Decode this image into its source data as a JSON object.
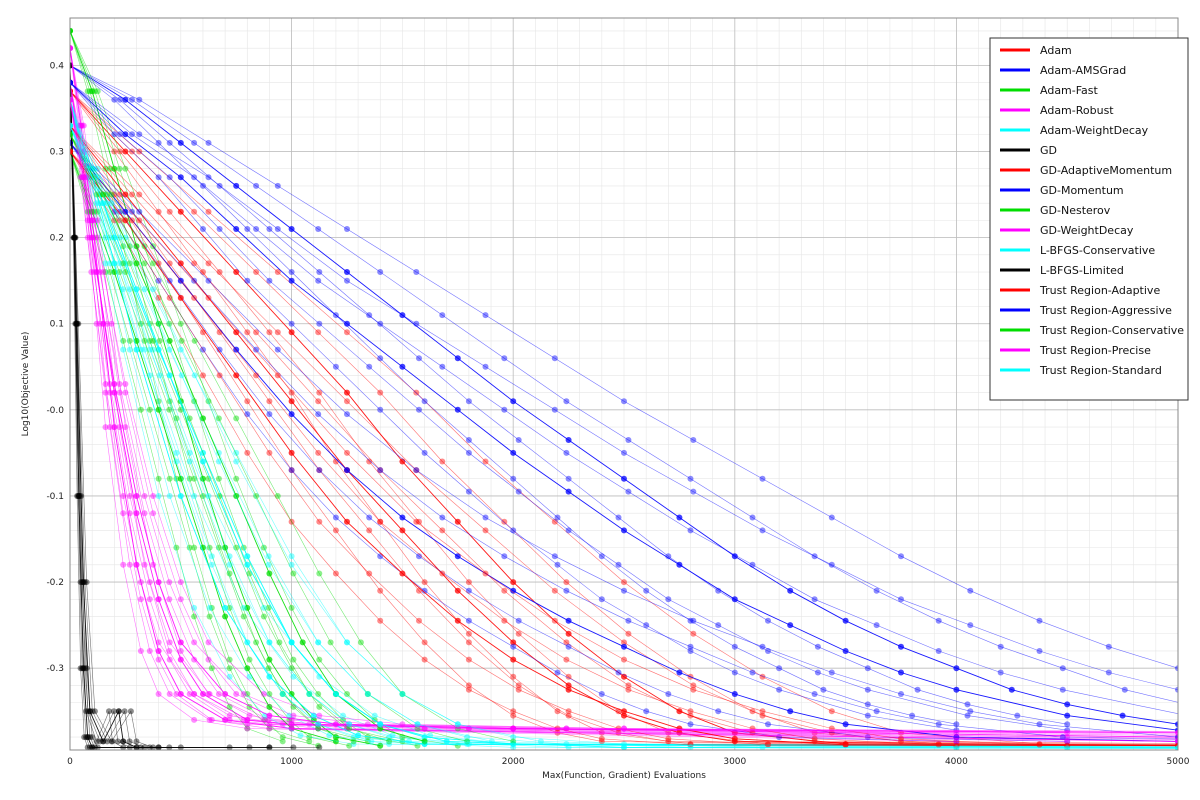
{
  "chart_data": {
    "type": "line",
    "title": "",
    "xlabel": "Max(Function, Gradient) Evaluations",
    "ylabel": "Log10(Objective Value)",
    "xlim": [
      0,
      5000
    ],
    "ylim": [
      -0.395,
      0.455
    ],
    "x_ticks": [
      0,
      1000,
      2000,
      3000,
      4000,
      5000
    ],
    "y_ticks": [
      -0.3,
      -0.2,
      -0.1,
      0.0,
      0.1,
      0.2,
      0.3,
      0.4
    ],
    "y_tick_labels": [
      "-0.3",
      "-0.2",
      "-0.1",
      "-0.0",
      "0.1",
      "0.2",
      "0.3",
      "0.4"
    ],
    "grid": true,
    "legend_position": "top-right",
    "series": [
      {
        "name": "Adam",
        "color": "#ff0000",
        "points": [
          [
            0,
            0.37
          ],
          [
            250,
            0.3
          ],
          [
            500,
            0.23
          ],
          [
            750,
            0.16
          ],
          [
            1000,
            0.09
          ],
          [
            1250,
            0.02
          ],
          [
            1500,
            -0.06
          ],
          [
            1750,
            -0.13
          ],
          [
            2000,
            -0.2
          ],
          [
            2250,
            -0.26
          ],
          [
            2500,
            -0.31
          ],
          [
            2750,
            -0.35
          ],
          [
            3000,
            -0.375
          ],
          [
            3500,
            -0.388
          ],
          [
            5000,
            -0.39
          ]
        ]
      },
      {
        "name": "Adam-AMSGrad",
        "color": "#0000ff",
        "points": [
          [
            0,
            0.4
          ],
          [
            250,
            0.36
          ],
          [
            500,
            0.31
          ],
          [
            750,
            0.26
          ],
          [
            1000,
            0.21
          ],
          [
            1250,
            0.16
          ],
          [
            1500,
            0.11
          ],
          [
            1750,
            0.06
          ],
          [
            2000,
            0.01
          ],
          [
            2250,
            -0.035
          ],
          [
            2500,
            -0.08
          ],
          [
            2750,
            -0.125
          ],
          [
            3000,
            -0.17
          ],
          [
            3250,
            -0.21
          ],
          [
            3500,
            -0.245
          ],
          [
            3750,
            -0.275
          ],
          [
            4000,
            -0.3
          ],
          [
            4250,
            -0.325
          ],
          [
            4500,
            -0.342
          ],
          [
            4750,
            -0.355
          ],
          [
            5000,
            -0.365
          ]
        ]
      },
      {
        "name": "Adam-Fast",
        "color": "#00dd00",
        "points": [
          [
            0,
            0.44
          ],
          [
            100,
            0.37
          ],
          [
            200,
            0.28
          ],
          [
            300,
            0.19
          ],
          [
            400,
            0.1
          ],
          [
            500,
            0.01
          ],
          [
            600,
            -0.08
          ],
          [
            700,
            -0.16
          ],
          [
            800,
            -0.23
          ],
          [
            900,
            -0.29
          ],
          [
            1000,
            -0.33
          ],
          [
            1100,
            -0.36
          ],
          [
            1200,
            -0.38
          ],
          [
            1400,
            -0.39
          ]
        ]
      },
      {
        "name": "Adam-Robust",
        "color": "#ff00ff",
        "points": [
          [
            0,
            0.38
          ],
          [
            50,
            0.3
          ],
          [
            100,
            0.2
          ],
          [
            200,
            0.02
          ],
          [
            300,
            -0.12
          ],
          [
            400,
            -0.22
          ],
          [
            500,
            -0.29
          ],
          [
            600,
            -0.33
          ],
          [
            800,
            -0.36
          ],
          [
            1000,
            -0.365
          ],
          [
            2000,
            -0.37
          ],
          [
            5000,
            -0.38
          ]
        ]
      },
      {
        "name": "Adam-WeightDecay",
        "color": "#00ffff",
        "points": [
          [
            0,
            0.35
          ],
          [
            100,
            0.28
          ],
          [
            200,
            0.2
          ],
          [
            400,
            0.07
          ],
          [
            600,
            -0.05
          ],
          [
            800,
            -0.17
          ],
          [
            1000,
            -0.27
          ],
          [
            1200,
            -0.33
          ],
          [
            1400,
            -0.365
          ],
          [
            1600,
            -0.38
          ],
          [
            2000,
            -0.388
          ],
          [
            5000,
            -0.39
          ]
        ]
      },
      {
        "name": "GD",
        "color": "#000000",
        "points": [
          [
            0,
            0.4
          ],
          [
            20,
            0.2
          ],
          [
            40,
            -0.1
          ],
          [
            60,
            -0.3
          ],
          [
            80,
            -0.38
          ],
          [
            100,
            -0.392
          ],
          [
            400,
            -0.392
          ]
        ]
      },
      {
        "name": "GD-AdaptiveMomentum",
        "color": "#ff0000",
        "points": [
          [
            0,
            0.33
          ],
          [
            250,
            0.25
          ],
          [
            500,
            0.17
          ],
          [
            750,
            0.09
          ],
          [
            1000,
            0.01
          ],
          [
            1250,
            -0.07
          ],
          [
            1500,
            -0.14
          ],
          [
            1750,
            -0.21
          ],
          [
            2000,
            -0.27
          ],
          [
            2250,
            -0.32
          ],
          [
            2500,
            -0.355
          ],
          [
            2750,
            -0.375
          ],
          [
            3000,
            -0.385
          ],
          [
            5000,
            -0.39
          ]
        ]
      },
      {
        "name": "GD-Momentum",
        "color": "#0000ff",
        "points": [
          [
            0,
            0.31
          ],
          [
            250,
            0.23
          ],
          [
            500,
            0.15
          ],
          [
            750,
            0.07
          ],
          [
            1000,
            -0.005
          ],
          [
            1250,
            -0.07
          ],
          [
            1500,
            -0.125
          ],
          [
            1750,
            -0.17
          ],
          [
            2000,
            -0.21
          ],
          [
            2250,
            -0.245
          ],
          [
            2500,
            -0.275
          ],
          [
            2750,
            -0.305
          ],
          [
            3000,
            -0.33
          ],
          [
            3250,
            -0.35
          ],
          [
            3500,
            -0.365
          ],
          [
            4000,
            -0.38
          ],
          [
            5000,
            -0.385
          ]
        ]
      },
      {
        "name": "GD-Nesterov",
        "color": "#00dd00",
        "points": [
          [
            0,
            0.3
          ],
          [
            100,
            0.23
          ],
          [
            200,
            0.16
          ],
          [
            300,
            0.08
          ],
          [
            400,
            0.0
          ],
          [
            500,
            -0.08
          ],
          [
            600,
            -0.16
          ],
          [
            700,
            -0.24
          ],
          [
            800,
            -0.3
          ],
          [
            900,
            -0.345
          ],
          [
            1000,
            -0.37
          ],
          [
            1200,
            -0.385
          ]
        ]
      },
      {
        "name": "GD-WeightDecay",
        "color": "#ff00ff",
        "points": [
          [
            0,
            0.42
          ],
          [
            50,
            0.33
          ],
          [
            100,
            0.22
          ],
          [
            150,
            0.1
          ],
          [
            200,
            -0.02
          ],
          [
            300,
            -0.18
          ],
          [
            400,
            -0.28
          ],
          [
            500,
            -0.33
          ],
          [
            700,
            -0.36
          ],
          [
            1000,
            -0.37
          ],
          [
            5000,
            -0.385
          ]
        ]
      },
      {
        "name": "L-BFGS-Conservative",
        "color": "#00ffff",
        "points": [
          [
            0,
            0.36
          ],
          [
            100,
            0.27
          ],
          [
            200,
            0.17
          ],
          [
            300,
            0.07
          ],
          [
            500,
            -0.1
          ],
          [
            700,
            -0.23
          ],
          [
            900,
            -0.31
          ],
          [
            1100,
            -0.355
          ],
          [
            1300,
            -0.378
          ],
          [
            1600,
            -0.388
          ],
          [
            5000,
            -0.392
          ]
        ]
      },
      {
        "name": "L-BFGS-Limited",
        "color": "#000000",
        "points": [
          [
            0,
            0.38
          ],
          [
            30,
            0.1
          ],
          [
            60,
            -0.2
          ],
          [
            90,
            -0.35
          ],
          [
            150,
            -0.385
          ],
          [
            220,
            -0.35
          ],
          [
            240,
            -0.385
          ],
          [
            300,
            -0.392
          ],
          [
            900,
            -0.392
          ]
        ]
      },
      {
        "name": "Trust Region-Adaptive",
        "color": "#ff0000",
        "points": [
          [
            0,
            0.3
          ],
          [
            250,
            0.22
          ],
          [
            500,
            0.13
          ],
          [
            750,
            0.04
          ],
          [
            1000,
            -0.05
          ],
          [
            1250,
            -0.13
          ],
          [
            1500,
            -0.19
          ],
          [
            1750,
            -0.245
          ],
          [
            2000,
            -0.29
          ],
          [
            2250,
            -0.325
          ],
          [
            2500,
            -0.35
          ],
          [
            2750,
            -0.37
          ],
          [
            3000,
            -0.382
          ],
          [
            3500,
            -0.389
          ],
          [
            5000,
            -0.39
          ]
        ]
      },
      {
        "name": "Trust Region-Aggressive",
        "color": "#0000ff",
        "points": [
          [
            0,
            0.38
          ],
          [
            250,
            0.32
          ],
          [
            500,
            0.27
          ],
          [
            750,
            0.21
          ],
          [
            1000,
            0.15
          ],
          [
            1250,
            0.1
          ],
          [
            1500,
            0.05
          ],
          [
            1750,
            0.0
          ],
          [
            2000,
            -0.05
          ],
          [
            2250,
            -0.095
          ],
          [
            2500,
            -0.14
          ],
          [
            2750,
            -0.18
          ],
          [
            3000,
            -0.22
          ],
          [
            3250,
            -0.25
          ],
          [
            3500,
            -0.28
          ],
          [
            3750,
            -0.305
          ],
          [
            4000,
            -0.325
          ],
          [
            4500,
            -0.355
          ],
          [
            5000,
            -0.372
          ]
        ]
      },
      {
        "name": "Trust Region-Conservative",
        "color": "#00dd00",
        "points": [
          [
            0,
            0.32
          ],
          [
            150,
            0.25
          ],
          [
            300,
            0.17
          ],
          [
            450,
            0.08
          ],
          [
            600,
            -0.01
          ],
          [
            750,
            -0.1
          ],
          [
            900,
            -0.19
          ],
          [
            1050,
            -0.27
          ],
          [
            1200,
            -0.33
          ],
          [
            1400,
            -0.37
          ],
          [
            1600,
            -0.385
          ]
        ]
      },
      {
        "name": "Trust Region-Precise",
        "color": "#ff00ff",
        "points": [
          [
            0,
            0.36
          ],
          [
            60,
            0.27
          ],
          [
            120,
            0.16
          ],
          [
            200,
            0.03
          ],
          [
            300,
            -0.1
          ],
          [
            400,
            -0.2
          ],
          [
            500,
            -0.27
          ],
          [
            700,
            -0.33
          ],
          [
            900,
            -0.355
          ],
          [
            1200,
            -0.365
          ],
          [
            2000,
            -0.37
          ],
          [
            5000,
            -0.375
          ]
        ]
      },
      {
        "name": "Trust Region-Standard",
        "color": "#00ffff",
        "points": [
          [
            0,
            0.33
          ],
          [
            150,
            0.24
          ],
          [
            300,
            0.14
          ],
          [
            450,
            0.04
          ],
          [
            600,
            -0.06
          ],
          [
            800,
            -0.18
          ],
          [
            1000,
            -0.27
          ],
          [
            1200,
            -0.33
          ],
          [
            1400,
            -0.365
          ],
          [
            1700,
            -0.385
          ],
          [
            2500,
            -0.392
          ],
          [
            5000,
            -0.393
          ]
        ]
      }
    ]
  }
}
